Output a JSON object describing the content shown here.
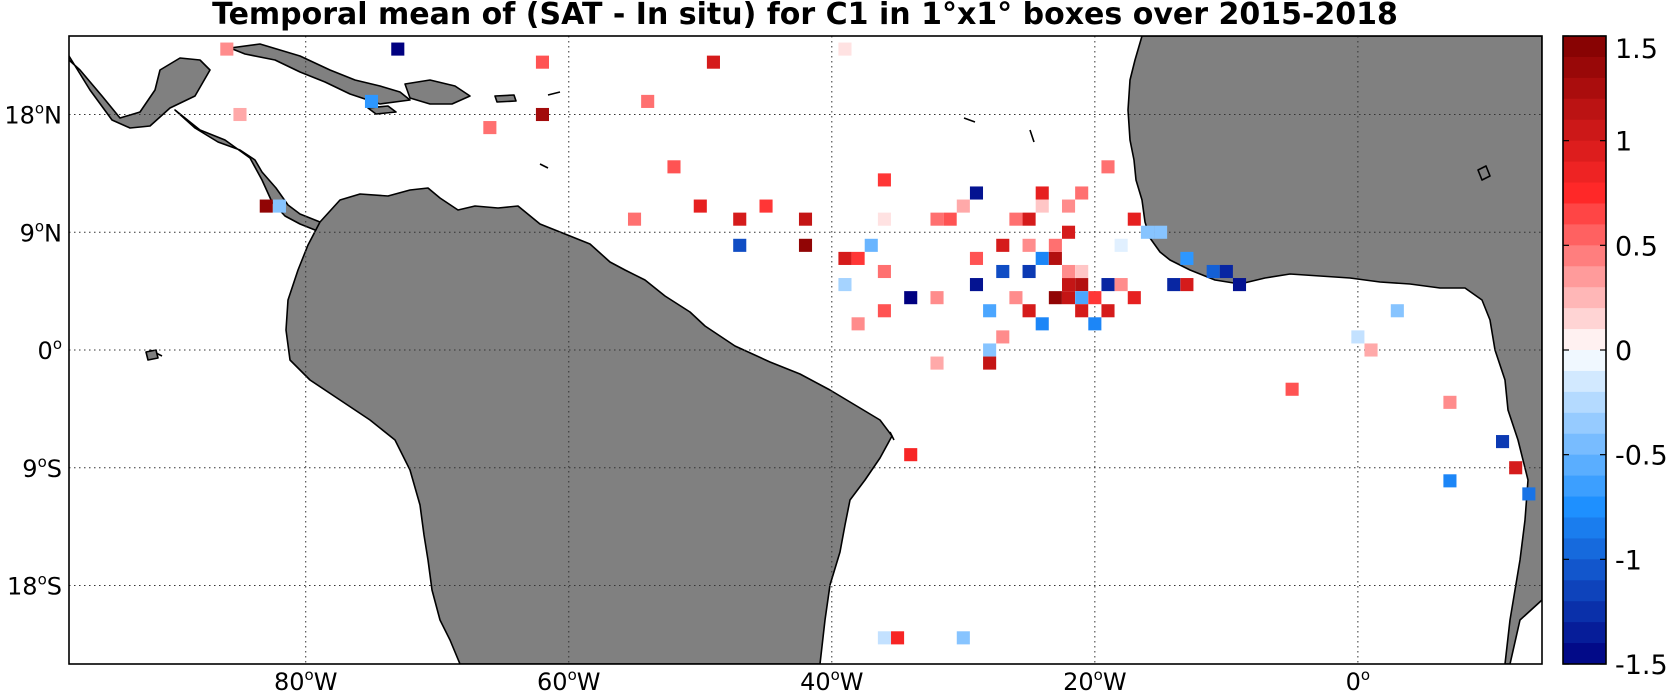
{
  "title": "Temporal mean of (SAT - In situ) for C1 in 1°x1° boxes over 2015-2018",
  "map": {
    "lon_range": [
      -98,
      14
    ],
    "lat_range": [
      -24,
      24
    ],
    "land_color": "#808080",
    "grid": true,
    "lon_ticks": [
      {
        "value": -80,
        "deg": "80",
        "hemi": "W"
      },
      {
        "value": -60,
        "deg": "60",
        "hemi": "W"
      },
      {
        "value": -40,
        "deg": "40",
        "hemi": "W"
      },
      {
        "value": -20,
        "deg": "20",
        "hemi": "W"
      },
      {
        "value": 0,
        "deg": "0",
        "hemi": ""
      }
    ],
    "lat_ticks": [
      {
        "value": 18,
        "deg": "18",
        "hemi": "N"
      },
      {
        "value": 9,
        "deg": "9",
        "hemi": "N"
      },
      {
        "value": 0,
        "deg": "0",
        "hemi": ""
      },
      {
        "value": -9,
        "deg": "9",
        "hemi": "S"
      },
      {
        "value": -18,
        "deg": "18",
        "hemi": "S"
      }
    ],
    "degree_symbol": "o"
  },
  "colorbar": {
    "range": [
      -1.5,
      1.5
    ],
    "placement": "right",
    "ticks": [
      {
        "value": 1.5,
        "label": "1.5"
      },
      {
        "value": 1.0,
        "label": "1"
      },
      {
        "value": 0.5,
        "label": "0.5"
      },
      {
        "value": 0,
        "label": "0"
      },
      {
        "value": -0.5,
        "label": "-0.5"
      },
      {
        "value": -1.0,
        "label": "-1"
      },
      {
        "value": -1.5,
        "label": "-1.5"
      }
    ]
  },
  "chart_data": {
    "type": "heatmap",
    "title": "Temporal mean of (SAT - In situ) for C1 in 1°x1° boxes over 2015-2018",
    "xlim": [
      -98,
      14
    ],
    "ylim": [
      -24,
      24
    ],
    "clim": [
      -1.5,
      1.5
    ],
    "points": [
      {
        "lon": -86,
        "lat": 23,
        "v": 0.4
      },
      {
        "lon": -73,
        "lat": 23,
        "v": -1.5
      },
      {
        "lon": -62,
        "lat": 22,
        "v": 0.6
      },
      {
        "lon": -49,
        "lat": 22,
        "v": 1.0
      },
      {
        "lon": -39,
        "lat": 23,
        "v": 0.1
      },
      {
        "lon": -75,
        "lat": 19,
        "v": -0.7
      },
      {
        "lon": -85,
        "lat": 18,
        "v": 0.3
      },
      {
        "lon": -62,
        "lat": 18,
        "v": 1.3
      },
      {
        "lon": -54,
        "lat": 19,
        "v": 0.5
      },
      {
        "lon": -66,
        "lat": 17,
        "v": 0.5
      },
      {
        "lon": -52,
        "lat": 14,
        "v": 0.6
      },
      {
        "lon": -36,
        "lat": 13,
        "v": 0.7
      },
      {
        "lon": -19,
        "lat": 14,
        "v": 0.5
      },
      {
        "lon": -83,
        "lat": 11,
        "v": 1.4
      },
      {
        "lon": -82,
        "lat": 11,
        "v": -0.4
      },
      {
        "lon": -50,
        "lat": 11,
        "v": 0.9
      },
      {
        "lon": -45,
        "lat": 11,
        "v": 0.7
      },
      {
        "lon": -55,
        "lat": 10,
        "v": 0.5
      },
      {
        "lon": -47,
        "lat": 10,
        "v": 1.0
      },
      {
        "lon": -42,
        "lat": 10,
        "v": 1.1
      },
      {
        "lon": -36,
        "lat": 10,
        "v": 0.1
      },
      {
        "lon": -32,
        "lat": 10,
        "v": 0.5
      },
      {
        "lon": -31,
        "lat": 10,
        "v": 0.6
      },
      {
        "lon": -30,
        "lat": 11,
        "v": 0.3
      },
      {
        "lon": -29,
        "lat": 12,
        "v": -1.4
      },
      {
        "lon": -26,
        "lat": 10,
        "v": 0.5
      },
      {
        "lon": -25,
        "lat": 10,
        "v": 1.0
      },
      {
        "lon": -24,
        "lat": 11,
        "v": 0.2
      },
      {
        "lon": -24,
        "lat": 12,
        "v": 0.9
      },
      {
        "lon": -22,
        "lat": 11,
        "v": 0.4
      },
      {
        "lon": -21,
        "lat": 12,
        "v": 0.5
      },
      {
        "lon": -22,
        "lat": 9,
        "v": 1.0
      },
      {
        "lon": -17,
        "lat": 10,
        "v": 0.9
      },
      {
        "lon": -16,
        "lat": 9,
        "v": -0.4
      },
      {
        "lon": -15,
        "lat": 9,
        "v": -0.4
      },
      {
        "lon": -47,
        "lat": 8,
        "v": -1.1
      },
      {
        "lon": -42,
        "lat": 8,
        "v": 1.4
      },
      {
        "lon": -39,
        "lat": 7,
        "v": 1.0
      },
      {
        "lon": -38,
        "lat": 7,
        "v": 0.7
      },
      {
        "lon": -37,
        "lat": 8,
        "v": -0.5
      },
      {
        "lon": -29,
        "lat": 7,
        "v": 0.6
      },
      {
        "lon": -27,
        "lat": 8,
        "v": 1.0
      },
      {
        "lon": -25,
        "lat": 8,
        "v": 0.4
      },
      {
        "lon": -24,
        "lat": 7,
        "v": -0.8
      },
      {
        "lon": -23,
        "lat": 7,
        "v": 1.2
      },
      {
        "lon": -23,
        "lat": 8,
        "v": 0.5
      },
      {
        "lon": -18,
        "lat": 8,
        "v": -0.1
      },
      {
        "lon": -13,
        "lat": 7,
        "v": -0.7
      },
      {
        "lon": -11,
        "lat": 6,
        "v": -1.0
      },
      {
        "lon": -10,
        "lat": 6,
        "v": -1.3
      },
      {
        "lon": -39,
        "lat": 5,
        "v": -0.3
      },
      {
        "lon": -36,
        "lat": 6,
        "v": 0.5
      },
      {
        "lon": -29,
        "lat": 5,
        "v": -1.4
      },
      {
        "lon": -27,
        "lat": 6,
        "v": -1.1
      },
      {
        "lon": -25,
        "lat": 6,
        "v": -1.2
      },
      {
        "lon": -22,
        "lat": 5,
        "v": 1.1
      },
      {
        "lon": -21,
        "lat": 5,
        "v": 1.2
      },
      {
        "lon": -22,
        "lat": 6,
        "v": 0.4
      },
      {
        "lon": -21,
        "lat": 6,
        "v": 0.2
      },
      {
        "lon": -19,
        "lat": 5,
        "v": -1.3
      },
      {
        "lon": -18,
        "lat": 5,
        "v": 0.4
      },
      {
        "lon": -14,
        "lat": 5,
        "v": -1.3
      },
      {
        "lon": -13,
        "lat": 5,
        "v": 1.0
      },
      {
        "lon": -9,
        "lat": 5,
        "v": -1.4
      },
      {
        "lon": -34,
        "lat": 4,
        "v": -1.5
      },
      {
        "lon": -32,
        "lat": 4,
        "v": 0.4
      },
      {
        "lon": -26,
        "lat": 4,
        "v": 0.4
      },
      {
        "lon": -23,
        "lat": 4,
        "v": 1.4
      },
      {
        "lon": -22,
        "lat": 4,
        "v": 1.1
      },
      {
        "lon": -21,
        "lat": 4,
        "v": -0.6
      },
      {
        "lon": -20,
        "lat": 4,
        "v": 0.7
      },
      {
        "lon": -17,
        "lat": 4,
        "v": 0.9
      },
      {
        "lon": -36,
        "lat": 3,
        "v": 0.6
      },
      {
        "lon": -28,
        "lat": 3,
        "v": -0.6
      },
      {
        "lon": -25,
        "lat": 3,
        "v": 1.0
      },
      {
        "lon": -21,
        "lat": 3,
        "v": 1.0
      },
      {
        "lon": -19,
        "lat": 3,
        "v": 1.0
      },
      {
        "lon": 3,
        "lat": 3,
        "v": -0.4
      },
      {
        "lon": -38,
        "lat": 2,
        "v": 0.4
      },
      {
        "lon": -24,
        "lat": 2,
        "v": -0.8
      },
      {
        "lon": -20,
        "lat": 2,
        "v": -0.8
      },
      {
        "lon": -27,
        "lat": 1,
        "v": 0.4
      },
      {
        "lon": -28,
        "lat": 0,
        "v": -0.4
      },
      {
        "lon": 0,
        "lat": 1,
        "v": -0.2
      },
      {
        "lon": 1,
        "lat": 0,
        "v": 0.3
      },
      {
        "lon": -32,
        "lat": -1,
        "v": 0.3
      },
      {
        "lon": -28,
        "lat": -1,
        "v": 1.1
      },
      {
        "lon": -5,
        "lat": -3,
        "v": 0.6
      },
      {
        "lon": 7,
        "lat": -4,
        "v": 0.4
      },
      {
        "lon": -34,
        "lat": -8,
        "v": 0.8
      },
      {
        "lon": 11,
        "lat": -7,
        "v": -1.2
      },
      {
        "lon": 12,
        "lat": -9,
        "v": 1.0
      },
      {
        "lon": 7,
        "lat": -10,
        "v": -0.8
      },
      {
        "lon": 13,
        "lat": -11,
        "v": -0.9
      },
      {
        "lon": -36,
        "lat": -22,
        "v": -0.2
      },
      {
        "lon": -35,
        "lat": -22,
        "v": 0.8
      },
      {
        "lon": -30,
        "lat": -22,
        "v": -0.4
      }
    ]
  }
}
